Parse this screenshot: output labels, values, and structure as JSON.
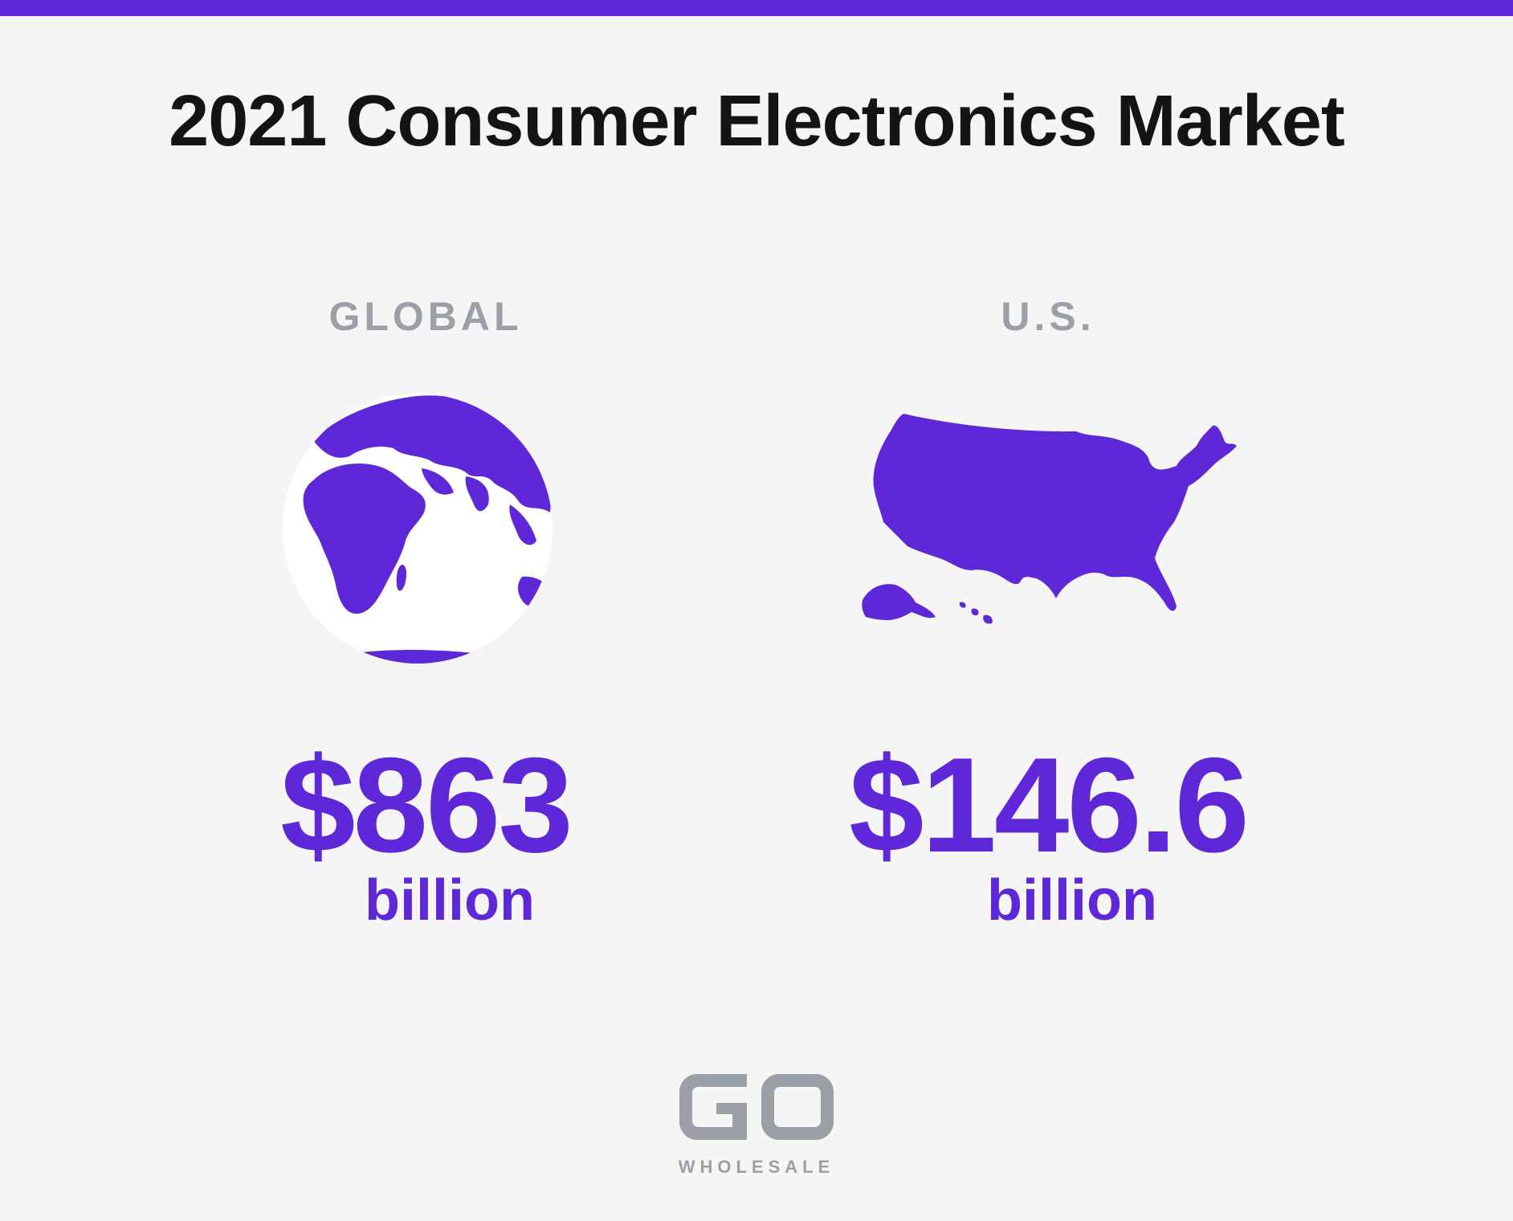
{
  "header": {
    "title": "2021 Consumer Electronics Market"
  },
  "markets": [
    {
      "label": "GLOBAL",
      "value": "$863",
      "unit": "billion",
      "icon": "globe-icon"
    },
    {
      "label": "U.S.",
      "value": "$146.6",
      "unit": "billion",
      "icon": "us-map-icon"
    }
  ],
  "logo": {
    "letters": "GO",
    "sub": "WHOLESALE"
  },
  "colors": {
    "accent": "#5e28d9",
    "muted": "#9b9fa6",
    "background": "#f5f5f5",
    "title": "#141414"
  }
}
